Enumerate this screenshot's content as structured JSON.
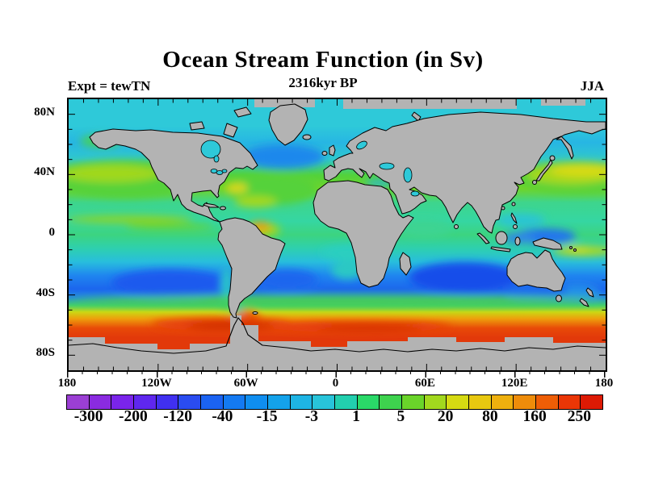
{
  "figure": {
    "title": "Ocean Stream Function (in Sv)",
    "subtitle": "2316kyr BP",
    "experiment_label": "Expt = tewTN",
    "season_label": "JJA",
    "background_color": "#ffffff",
    "text_color": "#000000"
  },
  "map": {
    "land_color": "#b3b3b3",
    "coastline_color": "#000000",
    "frame_color": "#000000",
    "x_axis": {
      "labels": [
        "180",
        "120W",
        "60W",
        "0",
        "60E",
        "120E",
        "180"
      ]
    },
    "y_axis": {
      "labels": [
        "80N",
        "40N",
        "0",
        "40S",
        "80S"
      ]
    }
  },
  "colorbar": {
    "labels": [
      "-300",
      "-200",
      "-120",
      "-40",
      "-15",
      "-3",
      "1",
      "5",
      "20",
      "80",
      "160",
      "250"
    ],
    "colors": [
      "#9b3fd4",
      "#8a2be0",
      "#7a24ea",
      "#5f27ee",
      "#4030f0",
      "#2a4cf0",
      "#1b63f2",
      "#147af2",
      "#0f8ef0",
      "#14a2ea",
      "#1eb4e4",
      "#28c4da",
      "#22cfae",
      "#2ad968",
      "#3ed34e",
      "#6ad42a",
      "#a2d81e",
      "#d6da12",
      "#e8c810",
      "#eeb00e",
      "#ee8c0a",
      "#ee5e06",
      "#ea3606",
      "#dd1a04"
    ]
  },
  "chart_data": {
    "type": "heatmap",
    "title": "Ocean Stream Function (in Sv)",
    "subtitle": "2316kyr BP",
    "experiment": "tewTN",
    "season": "JJA",
    "units": "Sv",
    "projection": "equirectangular world map",
    "x_range": [
      "180W",
      "180E"
    ],
    "y_range": [
      "90S",
      "90N"
    ],
    "x_tick_labels": [
      "180",
      "120W",
      "60W",
      "0",
      "60E",
      "120E",
      "180"
    ],
    "y_tick_labels": [
      "80N",
      "40N",
      "0",
      "40S",
      "80S"
    ],
    "colorbar_tick_values": [
      -300,
      -200,
      -120,
      -40,
      -15,
      -3,
      1,
      5,
      20,
      80,
      160,
      250
    ],
    "n_color_bins": 24,
    "land_mask": "continents and no-data cells shown gray",
    "approx_zonal_mean_by_latitude": [
      {
        "lat": "85N",
        "value_sv": 1
      },
      {
        "lat": "70N",
        "value_sv": 2
      },
      {
        "lat": "55N",
        "value_sv": 0
      },
      {
        "lat": "40N",
        "value_sv": 10
      },
      {
        "lat": "32N",
        "value_sv": 30
      },
      {
        "lat": "15N",
        "value_sv": 4
      },
      {
        "lat": "0",
        "value_sv": 4
      },
      {
        "lat": "12S",
        "value_sv": 1
      },
      {
        "lat": "25S",
        "value_sv": -10
      },
      {
        "lat": "35S",
        "value_sv": -30
      },
      {
        "lat": "45S",
        "value_sv": 5
      },
      {
        "lat": "50S",
        "value_sv": 60
      },
      {
        "lat": "57S",
        "value_sv": 180
      },
      {
        "lat": "62S",
        "value_sv": 230
      }
    ],
    "regional_features": [
      "Strong positive circumpolar band 48S-65S (orange to red, 80 to >250 Sv) with red maximum near 55S-60S in all basins",
      "Negative subtropical band 20S-45S (blue, -40 to -15 Sv); darkest blue in south Indian Ocean and central South Pacific",
      "North Pacific and North Atlantic subtropical gyres positive 5-20 Sv (green) with 20-80 Sv yellow maxima east of Japan and off the US east coast",
      "North Atlantic subpolar region 45N-60N weakly negative (blue, -15 to -3 Sv)",
      "Local positive maximum (orange, 20-80 Sv) off northeastern South America near the equator",
      "Arctic and equatorial belts weakly positive (turquoise/green, 1-5 Sv)",
      "Antarctica and adjacent no-data grid cells masked gray"
    ]
  }
}
